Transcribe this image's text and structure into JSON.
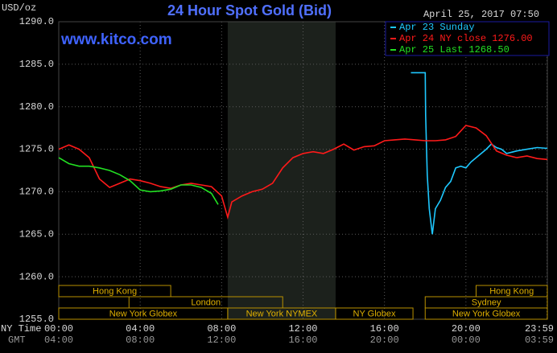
{
  "chart_data": {
    "type": "line",
    "title": "24 Hour Spot Gold (Bid)",
    "unit_label": "USD/oz",
    "timestamp": "April 25, 2017 07:50",
    "watermark": "www.kitco.com",
    "xlim": [
      0,
      24
    ],
    "xticks": [
      {
        "value": 0,
        "label": "00:00"
      },
      {
        "value": 4,
        "label": "04:00"
      },
      {
        "value": 8,
        "label": "08:00"
      },
      {
        "value": 12,
        "label": "12:00"
      },
      {
        "value": 16,
        "label": "16:00"
      },
      {
        "value": 20,
        "label": "20:00"
      },
      {
        "value": 23.98,
        "label": "23:59"
      }
    ],
    "x_row_label": "NY Time",
    "x2_row_label": "GMT",
    "x2_labels": [
      "04:00",
      "08:00",
      "12:00",
      "16:00",
      "20:00",
      "00:00",
      "03:59"
    ],
    "ylim": [
      1255,
      1290
    ],
    "yticks": [
      {
        "value": 1255,
        "label": "1255.0"
      },
      {
        "value": 1260,
        "label": "1260.0"
      },
      {
        "value": 1265,
        "label": "1265.0"
      },
      {
        "value": 1270,
        "label": "1270.0"
      },
      {
        "value": 1275,
        "label": "1275.0"
      },
      {
        "value": 1280,
        "label": "1280.0"
      },
      {
        "value": 1285,
        "label": "1285.0"
      },
      {
        "value": 1290,
        "label": "1290.0"
      }
    ],
    "grid": true,
    "series": [
      {
        "name": "Apr 23 Sunday",
        "color": "#1ec8ff",
        "x": [
          17.3,
          18.0,
          18.02,
          18.1,
          18.2,
          18.35,
          18.5,
          18.75,
          19,
          19.25,
          19.5,
          19.75,
          20,
          20.25,
          20.5,
          20.75,
          21,
          21.25,
          21.5,
          21.75,
          22,
          22.5,
          23,
          23.5,
          24
        ],
        "values": [
          1284.0,
          1284.0,
          1279.0,
          1272.0,
          1268.0,
          1265.0,
          1268.0,
          1269.0,
          1270.5,
          1271.2,
          1272.8,
          1273.0,
          1272.8,
          1273.5,
          1274.0,
          1274.5,
          1275.0,
          1275.6,
          1275.2,
          1275.0,
          1274.5,
          1274.8,
          1275.0,
          1275.2,
          1275.1
        ]
      },
      {
        "name": "Apr 24 NY close 1276.00",
        "color": "#ff1a1a",
        "x": [
          0,
          0.5,
          1,
          1.5,
          2,
          2.5,
          3,
          3.5,
          4,
          4.5,
          5,
          5.5,
          6,
          6.5,
          7,
          7.5,
          8,
          8.3,
          8.5,
          9,
          9.5,
          10,
          10.5,
          11,
          11.5,
          12,
          12.5,
          13,
          13.5,
          14,
          14.5,
          15,
          15.5,
          16,
          16.5,
          17,
          17.5,
          18,
          18.5,
          19,
          19.5,
          20,
          20.5,
          21,
          21.5,
          22,
          22.5,
          23,
          23.5,
          24
        ],
        "values": [
          1275.0,
          1275.5,
          1275.0,
          1274.0,
          1271.5,
          1270.5,
          1271.0,
          1271.5,
          1271.3,
          1271.0,
          1270.6,
          1270.4,
          1270.8,
          1271.0,
          1270.8,
          1270.6,
          1269.5,
          1267.0,
          1268.8,
          1269.5,
          1270.0,
          1270.3,
          1271.0,
          1272.8,
          1274.0,
          1274.5,
          1274.7,
          1274.5,
          1275.0,
          1275.6,
          1274.9,
          1275.3,
          1275.4,
          1276.0,
          1276.1,
          1276.2,
          1276.1,
          1276.0,
          1276.0,
          1276.1,
          1276.5,
          1277.8,
          1277.5,
          1276.6,
          1274.8,
          1274.3,
          1274.0,
          1274.2,
          1273.9,
          1273.8
        ]
      },
      {
        "name": "Apr 25 Last 1268.50",
        "color": "#22e022",
        "x": [
          0,
          0.5,
          1,
          1.5,
          2,
          2.5,
          3,
          3.5,
          4,
          4.5,
          5,
          5.5,
          6,
          6.5,
          7,
          7.5,
          7.83
        ],
        "values": [
          1274.0,
          1273.3,
          1273.0,
          1273.0,
          1272.8,
          1272.5,
          1272.0,
          1271.3,
          1270.2,
          1270.0,
          1270.1,
          1270.3,
          1270.8,
          1270.8,
          1270.5,
          1269.8,
          1268.5
        ]
      }
    ],
    "sessions": [
      {
        "label": "Hong Kong",
        "start": 0,
        "end": 5.5,
        "row": 0
      },
      {
        "label": "Hong Kong",
        "start": 20.5,
        "end": 24,
        "row": 0
      },
      {
        "label": "London",
        "start": 3.45,
        "end": 11,
        "row": 1
      },
      {
        "label": "Sydney",
        "start": 18,
        "end": 24,
        "row": 1
      },
      {
        "label": "New York Globex",
        "start": 0,
        "end": 8.3,
        "row": 2
      },
      {
        "label": "New York NYMEX",
        "start": 8.3,
        "end": 13.6,
        "row": 2,
        "shaded": true
      },
      {
        "label": "NY Globex",
        "start": 13.6,
        "end": 17.4,
        "row": 2
      },
      {
        "label": "New York Globex",
        "start": 18,
        "end": 24,
        "row": 2
      }
    ]
  }
}
